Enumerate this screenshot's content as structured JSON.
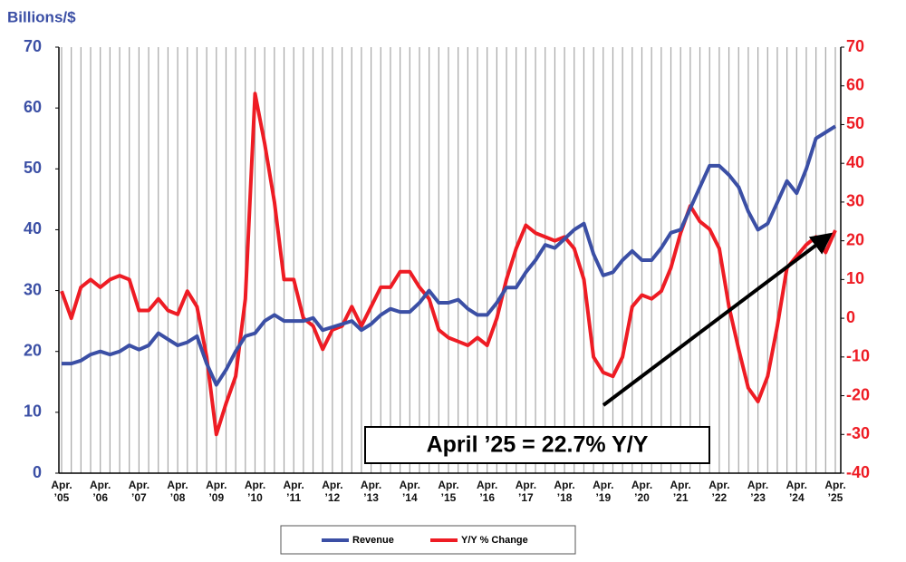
{
  "chart_data": {
    "type": "line",
    "y_label": "Billions/$",
    "annotation": "April ’25 = 22.7% Y/Y",
    "categories": [
      "Apr. ’05",
      null,
      null,
      null,
      "Apr. ’06",
      null,
      null,
      null,
      "Apr. ’07",
      null,
      null,
      null,
      "Apr. ’08",
      null,
      null,
      null,
      "Apr. ’09",
      null,
      null,
      null,
      "Apr. ’10",
      null,
      null,
      null,
      "Apr. ’11",
      null,
      null,
      null,
      "Apr. ’12",
      null,
      null,
      null,
      "Apr. ’13",
      null,
      null,
      null,
      "Apr. ’14",
      null,
      null,
      null,
      "Apr. ’15",
      null,
      null,
      null,
      "Apr. ’16",
      null,
      null,
      null,
      "Apr. ’17",
      null,
      null,
      null,
      "Apr. ’18",
      null,
      null,
      null,
      "Apr. ’19",
      null,
      null,
      null,
      "Apr. ’20",
      null,
      null,
      null,
      "Apr. ’21",
      null,
      null,
      null,
      "Apr. ’22",
      null,
      null,
      null,
      "Apr. ’23",
      null,
      null,
      null,
      "Apr. ’24",
      null,
      null,
      null,
      "Apr. ’25"
    ],
    "series": [
      {
        "name": "Revenue",
        "color": "#3b4fa5",
        "values": [
          18,
          18,
          18.5,
          19.5,
          20,
          19.5,
          20,
          21,
          20.3,
          21,
          23,
          22,
          21,
          21.5,
          22.5,
          18,
          14.5,
          17,
          20,
          22.5,
          23,
          25,
          26,
          25,
          25,
          25,
          25.5,
          23.5,
          24,
          24.5,
          25,
          23.5,
          24.5,
          26,
          27,
          26.5,
          26.5,
          28,
          30,
          28,
          28,
          28.5,
          27,
          26,
          26,
          28,
          30.5,
          30.5,
          33,
          35,
          37.5,
          37,
          38.5,
          40,
          41,
          36,
          32.5,
          33,
          35,
          36.5,
          35,
          35,
          37,
          39.5,
          40,
          43.5,
          47,
          50.5,
          50.5,
          49,
          47,
          43,
          40,
          41,
          44.5,
          48,
          46,
          50,
          55,
          56,
          57
        ]
      },
      {
        "name": "Y/Y % Change",
        "color": "#ee1c24",
        "axis": "y2",
        "values": [
          7,
          0,
          8,
          10,
          8,
          10,
          11,
          10,
          2,
          2,
          5,
          2,
          1,
          7,
          3,
          -10,
          -30,
          -22,
          -15,
          5,
          58,
          45,
          30,
          10,
          10,
          0,
          -2,
          -8,
          -3,
          -2,
          3,
          -2,
          3,
          8,
          8,
          12,
          12,
          8,
          5,
          -3,
          -5,
          -6,
          -7,
          -5,
          -7,
          0,
          10,
          18,
          24,
          22,
          21,
          20,
          21,
          18,
          10,
          -10,
          -14,
          -15,
          -10,
          3,
          6,
          5,
          7,
          13,
          22,
          29,
          25,
          23,
          18,
          3,
          -8,
          -18,
          -21.5,
          -15,
          -2,
          13,
          16,
          19,
          21,
          17,
          22.7
        ]
      }
    ],
    "ylim": [
      0,
      70
    ],
    "yticks": [
      0,
      10,
      20,
      30,
      40,
      50,
      60,
      70
    ],
    "y2lim": [
      -40,
      70
    ],
    "y2ticks": [
      -40,
      -30,
      -20,
      -10,
      0,
      10,
      20,
      30,
      40,
      50,
      60,
      70
    ],
    "grid": true
  }
}
